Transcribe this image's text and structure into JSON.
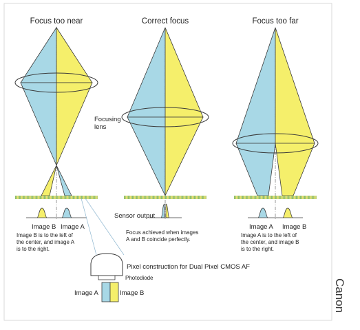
{
  "colors": {
    "blue": "#a8d8e6",
    "yellow": "#f5ef6b",
    "sensor_green": "#b9d07a",
    "sensor_yellow": "#e8e070",
    "stroke": "#3a3a3a",
    "frame": "#d9d9d9"
  },
  "panels": {
    "near": {
      "title": "Focus too near",
      "label_b": "Image B",
      "label_a": "Image A",
      "desc": [
        "Image B is to the left of",
        "the center, and image A",
        "is to the right."
      ]
    },
    "correct": {
      "title": "Correct focus",
      "lens_label": [
        "Focusing",
        "lens"
      ],
      "sensor_output": "Sensor output",
      "desc": [
        "Focus achieved when images",
        "A and B coincide perfectly."
      ]
    },
    "far": {
      "title": "Focus too far",
      "label_a": "Image A",
      "label_b": "Image B",
      "desc": [
        "Image A is to the left of",
        "the center, and image B",
        "is to the right."
      ]
    }
  },
  "pixel": {
    "title": "Pixel construction for Dual Pixel CMOS AF",
    "photodiode": "Photodiode",
    "image_a": "Image A",
    "image_b": "Image B"
  },
  "credit": "Canon"
}
